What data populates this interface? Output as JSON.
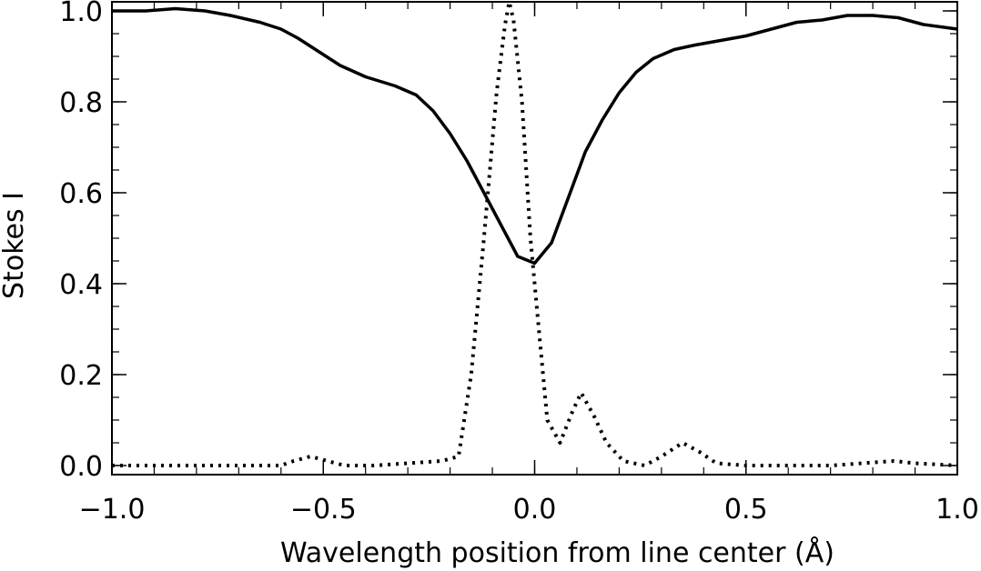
{
  "chart_data": {
    "type": "line",
    "title": "",
    "xlabel": "Wavelength position from line center (Å)",
    "ylabel": "Stokes I",
    "xlim": [
      -1.0,
      1.0
    ],
    "ylim": [
      -0.02,
      1.02
    ],
    "grid": false,
    "legend": "none",
    "x_ticks": [
      -1.0,
      -0.5,
      0.0,
      0.5,
      1.0
    ],
    "x_tick_labels": [
      "−1.0",
      "−0.5",
      "0.0",
      "0.5",
      "1.0"
    ],
    "y_ticks": [
      0.0,
      0.2,
      0.4,
      0.6,
      0.8,
      1.0
    ],
    "y_tick_labels": [
      "0.0",
      "0.2",
      "0.4",
      "0.6",
      "0.8",
      "1.0"
    ],
    "series": [
      {
        "style": "solid",
        "color": "#000000",
        "points": [
          [
            -1.0,
            1.0
          ],
          [
            -0.92,
            1.0
          ],
          [
            -0.85,
            1.005
          ],
          [
            -0.78,
            1.0
          ],
          [
            -0.72,
            0.99
          ],
          [
            -0.65,
            0.975
          ],
          [
            -0.6,
            0.96
          ],
          [
            -0.56,
            0.94
          ],
          [
            -0.51,
            0.91
          ],
          [
            -0.46,
            0.88
          ],
          [
            -0.4,
            0.855
          ],
          [
            -0.33,
            0.835
          ],
          [
            -0.28,
            0.815
          ],
          [
            -0.24,
            0.78
          ],
          [
            -0.2,
            0.73
          ],
          [
            -0.16,
            0.67
          ],
          [
            -0.12,
            0.6
          ],
          [
            -0.08,
            0.53
          ],
          [
            -0.04,
            0.46
          ],
          [
            0.0,
            0.445
          ],
          [
            0.04,
            0.49
          ],
          [
            0.08,
            0.59
          ],
          [
            0.12,
            0.69
          ],
          [
            0.16,
            0.76
          ],
          [
            0.2,
            0.82
          ],
          [
            0.24,
            0.865
          ],
          [
            0.28,
            0.895
          ],
          [
            0.33,
            0.915
          ],
          [
            0.38,
            0.925
          ],
          [
            0.44,
            0.935
          ],
          [
            0.5,
            0.945
          ],
          [
            0.56,
            0.96
          ],
          [
            0.62,
            0.975
          ],
          [
            0.68,
            0.98
          ],
          [
            0.74,
            0.99
          ],
          [
            0.8,
            0.99
          ],
          [
            0.86,
            0.985
          ],
          [
            0.92,
            0.97
          ],
          [
            1.0,
            0.96
          ]
        ]
      },
      {
        "style": "dotted",
        "color": "#000000",
        "points": [
          [
            -1.0,
            0.0
          ],
          [
            -0.6,
            0.0
          ],
          [
            -0.57,
            0.01
          ],
          [
            -0.53,
            0.02
          ],
          [
            -0.49,
            0.01
          ],
          [
            -0.45,
            0.0
          ],
          [
            -0.38,
            0.0
          ],
          [
            -0.3,
            0.005
          ],
          [
            -0.22,
            0.01
          ],
          [
            -0.18,
            0.02
          ],
          [
            -0.15,
            0.2
          ],
          [
            -0.12,
            0.5
          ],
          [
            -0.09,
            0.82
          ],
          [
            -0.07,
            0.97
          ],
          [
            -0.06,
            1.02
          ],
          [
            -0.05,
            0.98
          ],
          [
            -0.03,
            0.8
          ],
          [
            -0.01,
            0.5
          ],
          [
            0.01,
            0.3
          ],
          [
            0.03,
            0.1
          ],
          [
            0.06,
            0.05
          ],
          [
            0.09,
            0.12
          ],
          [
            0.11,
            0.16
          ],
          [
            0.14,
            0.11
          ],
          [
            0.17,
            0.05
          ],
          [
            0.21,
            0.01
          ],
          [
            0.26,
            0.0
          ],
          [
            0.3,
            0.02
          ],
          [
            0.35,
            0.05
          ],
          [
            0.39,
            0.03
          ],
          [
            0.43,
            0.005
          ],
          [
            0.5,
            0.0
          ],
          [
            0.7,
            0.0
          ],
          [
            0.85,
            0.01
          ],
          [
            0.9,
            0.005
          ],
          [
            1.0,
            0.0
          ]
        ]
      }
    ]
  }
}
